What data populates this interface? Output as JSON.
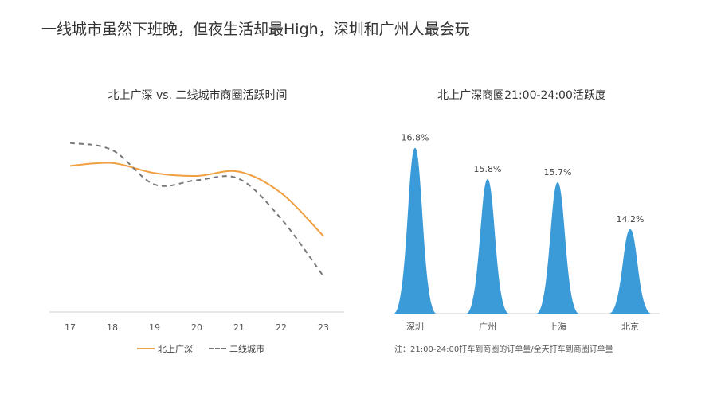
{
  "page": {
    "title": "一线城市虽然下班晚，但夜生活却最High，深圳和广州人最会玩"
  },
  "colors": {
    "tier1": "#F0A040",
    "tier2": "#777777",
    "bar": "#3B9BD9",
    "axis": "#D0D0D0"
  },
  "chart_data": [
    {
      "type": "line",
      "title": "北上广深 vs. 二线城市商圈活跃时间",
      "x": [
        "17",
        "18",
        "19",
        "20",
        "21",
        "22",
        "23"
      ],
      "series": [
        {
          "name": "北上广深",
          "values": [
            0.62,
            0.64,
            0.57,
            0.55,
            0.58,
            0.43,
            0.13
          ]
        },
        {
          "name": "二线城市",
          "values": [
            0.78,
            0.73,
            0.49,
            0.52,
            0.53,
            0.25,
            -0.15
          ]
        }
      ],
      "ylim": [
        -0.4,
        1.0
      ],
      "grid": false,
      "legend": "bottom"
    },
    {
      "type": "bar",
      "title": "北上广深商圈21:00-24:00活跃度",
      "categories": [
        "深圳",
        "广州",
        "上海",
        "北京"
      ],
      "values": [
        16.8,
        15.8,
        15.7,
        14.2
      ],
      "data_labels": [
        "16.8%",
        "15.8%",
        "15.7%",
        "14.2%"
      ],
      "ylim": [
        11.5,
        17.2
      ],
      "grid": false,
      "note": "注：21:00-24:00打车到商圈的订单量/全天打车到商圈订单量"
    }
  ]
}
